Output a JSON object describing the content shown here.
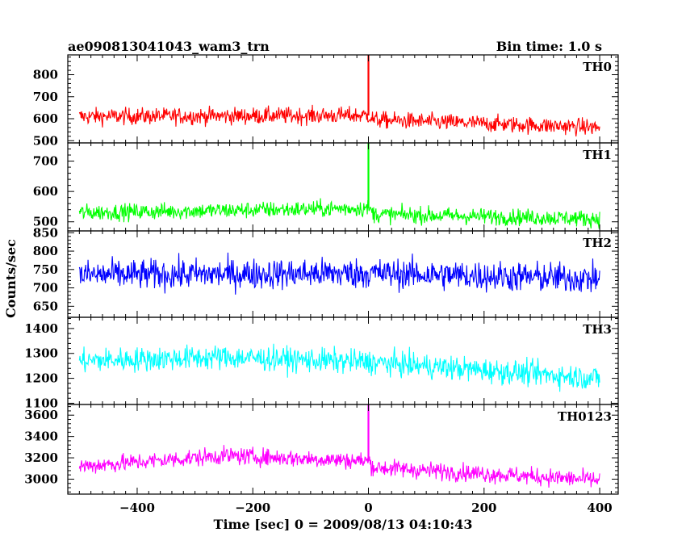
{
  "header": {
    "title": "ae090813041043_wam3_trn",
    "bin_time": "Bin time: 1.0 s"
  },
  "axes": {
    "ylabel": "Counts/sec",
    "xlabel": "Time [sec] 0 = 2009/08/13 04:10:43"
  },
  "chart_data": {
    "type": "line",
    "x_range": [
      -500,
      400
    ],
    "xlim": [
      -520,
      432
    ],
    "x_ticks": [
      -400,
      -200,
      0,
      200,
      400
    ],
    "x_tick_labels": [
      "−400",
      "−200",
      "0",
      "200",
      "400"
    ],
    "bin_time_s": 1.0,
    "grid": false,
    "panels": [
      {
        "name": "TH0",
        "color": "#ff0000",
        "ylim": [
          490,
          890
        ],
        "yticks": [
          500,
          600,
          700,
          800
        ],
        "ytick_labels": [
          "500",
          "600",
          "700",
          "800"
        ],
        "trend": [
          [
            -500,
            610
          ],
          [
            0,
            615
          ],
          [
            10,
            595
          ],
          [
            400,
            560
          ]
        ],
        "noise": 35,
        "spike": {
          "x": 0,
          "y": 890
        }
      },
      {
        "name": "TH1",
        "color": "#00ff00",
        "ylim": [
          470,
          760
        ],
        "yticks": [
          500,
          600,
          700
        ],
        "ytick_labels": [
          "500",
          "600",
          "700"
        ],
        "trend": [
          [
            -500,
            530
          ],
          [
            0,
            545
          ],
          [
            10,
            525
          ],
          [
            400,
            510
          ]
        ],
        "noise": 25,
        "spike": {
          "x": 0,
          "y": 760
        }
      },
      {
        "name": "TH2",
        "color": "#0000ff",
        "ylim": [
          620,
          855
        ],
        "yticks": [
          650,
          700,
          750,
          800,
          850
        ],
        "ytick_labels": [
          "650",
          "700",
          "750",
          "800",
          "850"
        ],
        "trend": [
          [
            -500,
            735
          ],
          [
            0,
            740
          ],
          [
            400,
            725
          ]
        ],
        "noise": 38,
        "spike": null
      },
      {
        "name": "TH3",
        "color": "#00ffff",
        "ylim": [
          1095,
          1445
        ],
        "yticks": [
          1100,
          1200,
          1300,
          1400
        ],
        "ytick_labels": [
          "1100",
          "1200",
          "1300",
          "1400"
        ],
        "trend": [
          [
            -500,
            1270
          ],
          [
            -250,
            1285
          ],
          [
            0,
            1265
          ],
          [
            400,
            1200
          ]
        ],
        "noise": 45,
        "spike": null
      },
      {
        "name": "TH0123",
        "color": "#ff00ff",
        "ylim": [
          2860,
          3700
        ],
        "yticks": [
          3000,
          3200,
          3400,
          3600
        ],
        "ytick_labels": [
          "3000",
          "3200",
          "3400",
          "3600"
        ],
        "trend": [
          [
            -500,
            3120
          ],
          [
            -250,
            3220
          ],
          [
            0,
            3170
          ],
          [
            10,
            3110
          ],
          [
            400,
            2990
          ]
        ],
        "noise": 75,
        "spike": {
          "x": 0,
          "y": 3700
        }
      }
    ]
  }
}
